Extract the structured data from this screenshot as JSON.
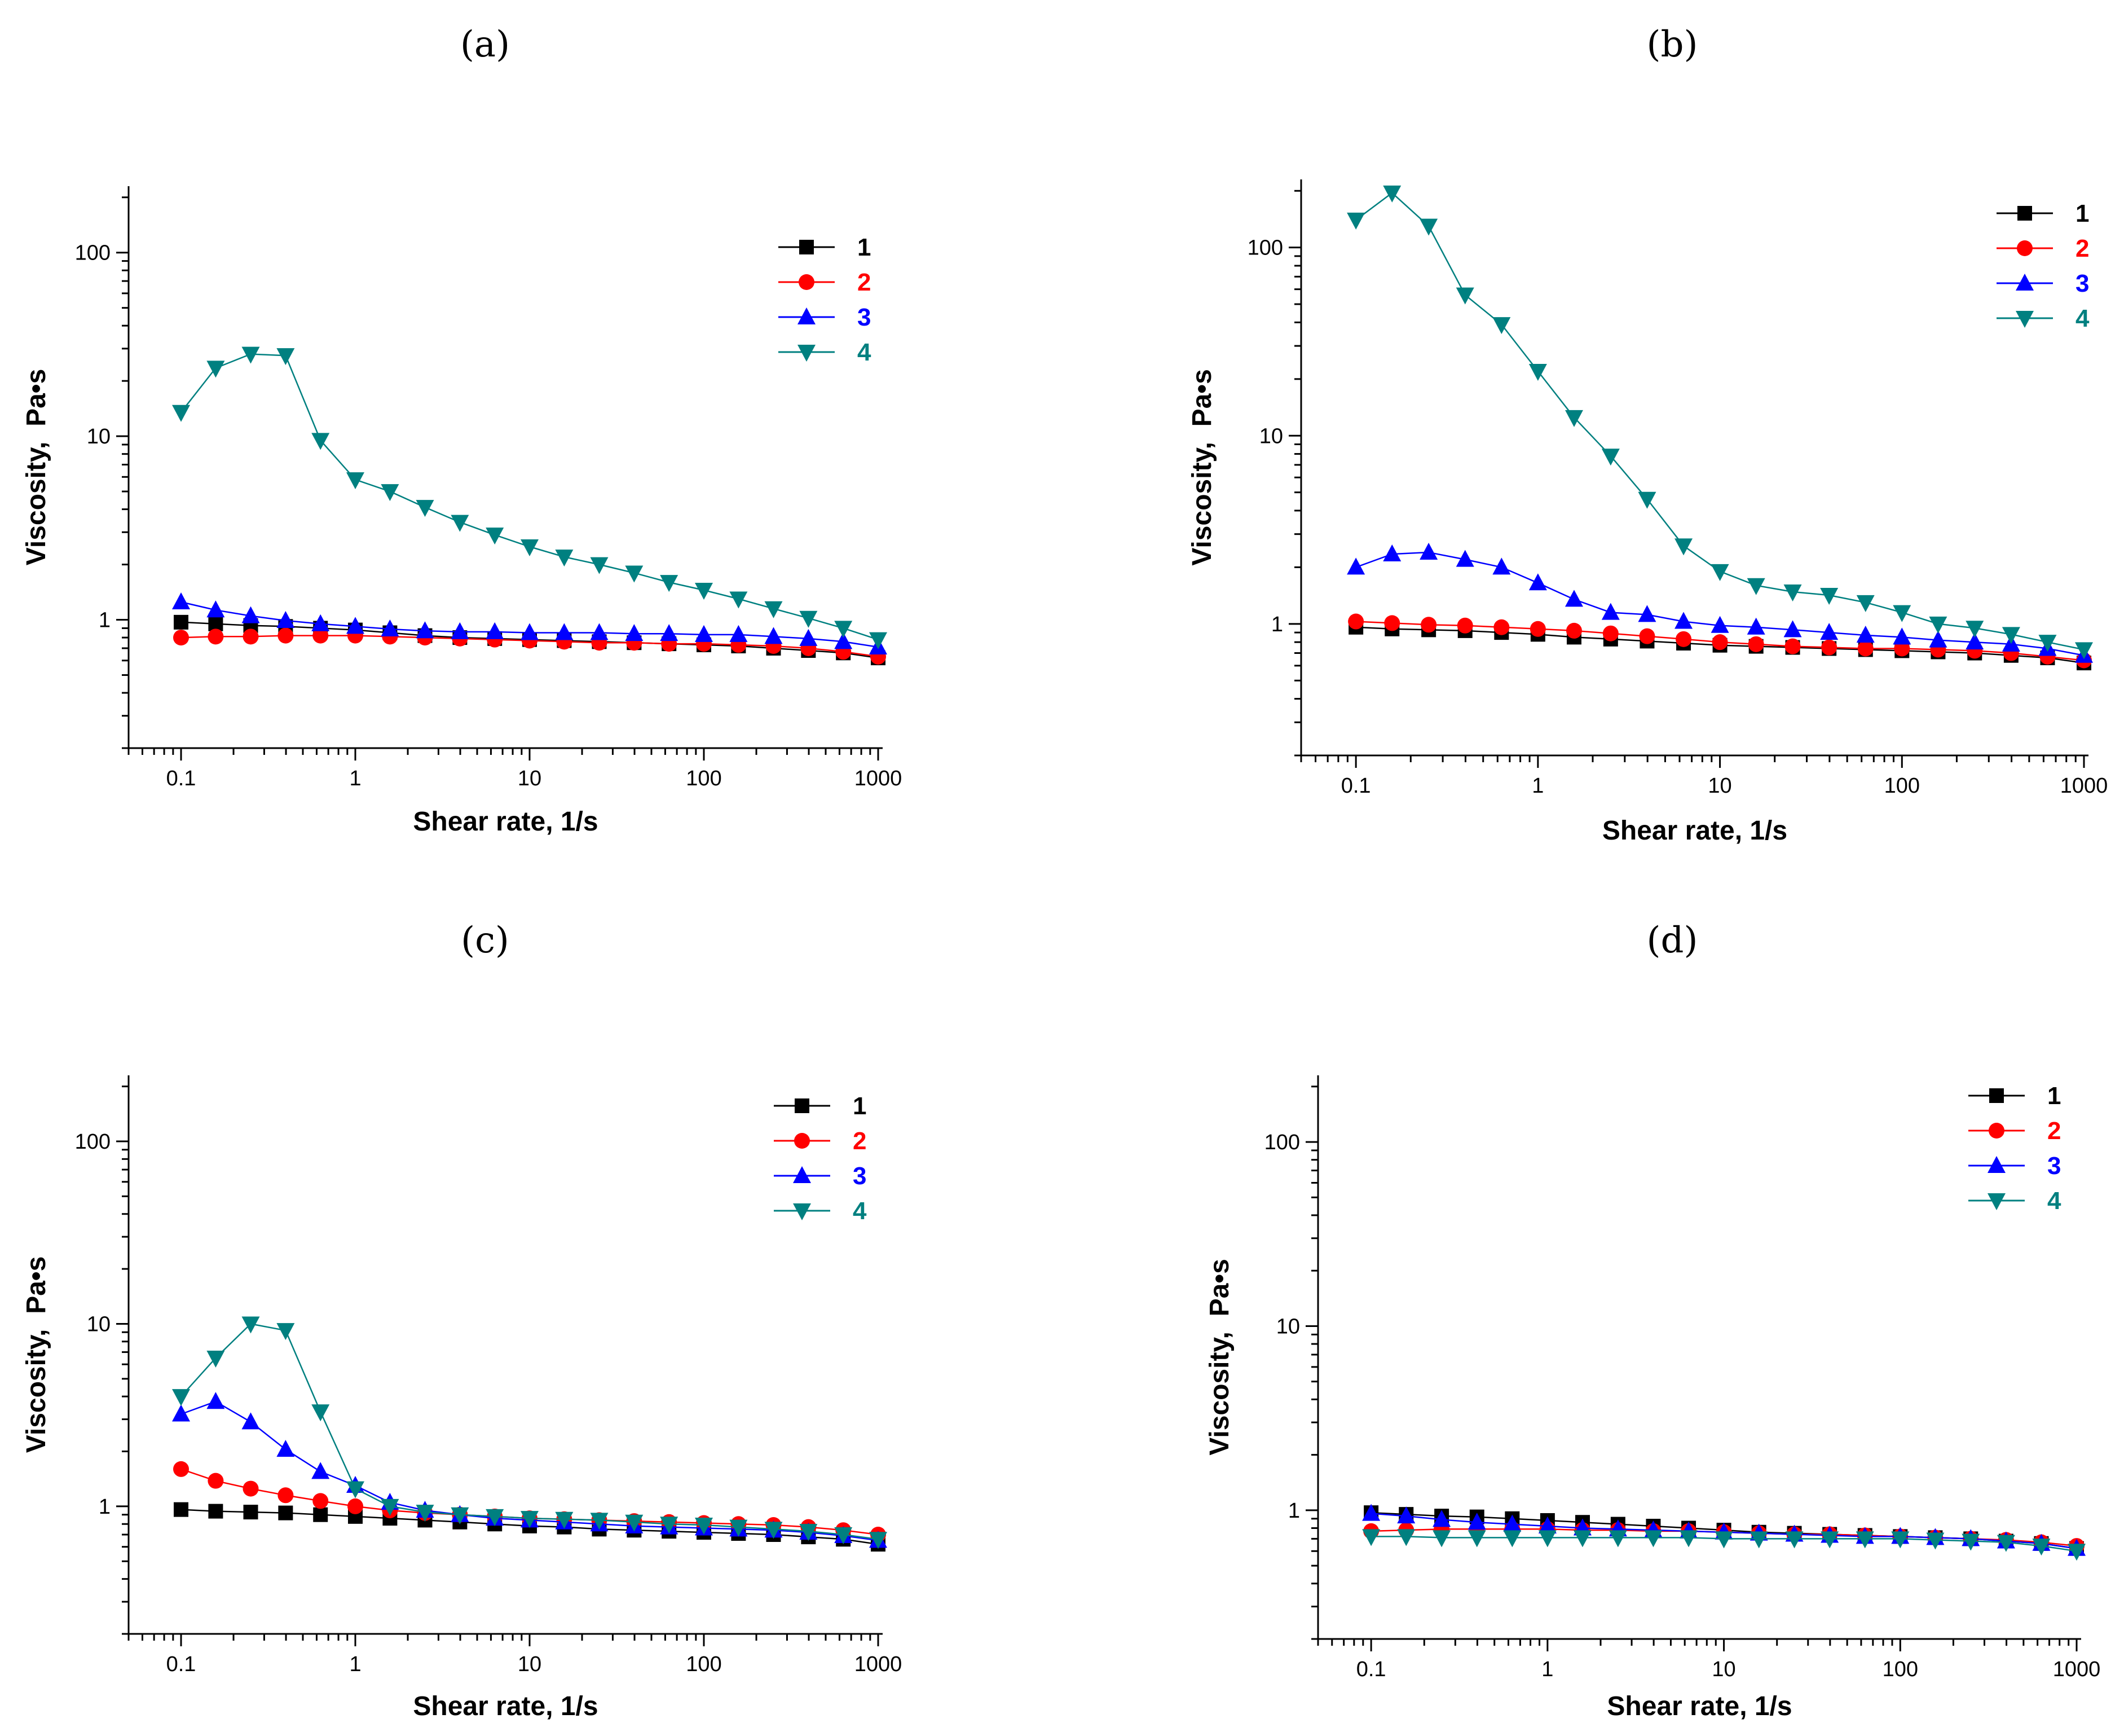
{
  "chart_data": [
    {
      "panel": "(a)",
      "type": "line",
      "xscale": "log",
      "yscale": "log",
      "xlim": [
        0.05,
        1000
      ],
      "ylim": [
        0.2,
        230
      ],
      "xlabel": "Shear rate, 1/s",
      "ylabel": "Viscosity,  Pa•s",
      "xticks": [
        "0.1",
        "1",
        "10",
        "100",
        "1000"
      ],
      "yticks": [
        "1",
        "10",
        "100"
      ],
      "legend": "top-right",
      "x": [
        0.1,
        0.158,
        0.251,
        0.398,
        0.631,
        1,
        1.58,
        2.51,
        3.98,
        6.31,
        10,
        15.8,
        25.1,
        39.8,
        63.1,
        100,
        158,
        251,
        398,
        631,
        1000
      ],
      "series": [
        {
          "name": "1",
          "color": "#000000",
          "marker": "square",
          "values": [
            0.97,
            0.95,
            0.93,
            0.92,
            0.9,
            0.88,
            0.85,
            0.82,
            0.8,
            0.79,
            0.78,
            0.77,
            0.76,
            0.75,
            0.74,
            0.73,
            0.72,
            0.7,
            0.68,
            0.66,
            0.62
          ]
        },
        {
          "name": "2",
          "color": "#ff0000",
          "marker": "circle",
          "values": [
            0.8,
            0.81,
            0.81,
            0.82,
            0.82,
            0.82,
            0.81,
            0.8,
            0.79,
            0.78,
            0.77,
            0.76,
            0.75,
            0.75,
            0.74,
            0.74,
            0.73,
            0.72,
            0.7,
            0.67,
            0.63
          ]
        },
        {
          "name": "3",
          "color": "#0000ff",
          "marker": "triangle-up",
          "values": [
            1.25,
            1.13,
            1.05,
            0.99,
            0.95,
            0.92,
            0.89,
            0.87,
            0.86,
            0.86,
            0.85,
            0.85,
            0.85,
            0.84,
            0.84,
            0.83,
            0.83,
            0.81,
            0.79,
            0.76,
            0.71
          ]
        },
        {
          "name": "4",
          "color": "#008080",
          "marker": "triangle-down",
          "values": [
            13.5,
            23.5,
            28,
            27.5,
            9.5,
            5.8,
            5.0,
            4.1,
            3.4,
            2.9,
            2.5,
            2.2,
            2.0,
            1.8,
            1.6,
            1.45,
            1.3,
            1.15,
            1.02,
            0.9,
            0.78
          ]
        }
      ]
    },
    {
      "panel": "(b)",
      "type": "line",
      "xscale": "log",
      "yscale": "log",
      "xlim": [
        0.05,
        1000
      ],
      "ylim": [
        0.2,
        230
      ],
      "xlabel": "Shear rate, 1/s",
      "ylabel": "Viscosity,  Pa•s",
      "xticks": [
        "0.1",
        "1",
        "10",
        "100",
        "1000"
      ],
      "yticks": [
        "1",
        "10",
        "100"
      ],
      "legend": "top-right",
      "x": [
        0.1,
        0.158,
        0.251,
        0.398,
        0.631,
        1,
        1.58,
        2.51,
        3.98,
        6.31,
        10,
        15.8,
        25.1,
        39.8,
        63.1,
        100,
        158,
        251,
        398,
        631,
        1000
      ],
      "series": [
        {
          "name": "1",
          "color": "#000000",
          "marker": "square",
          "values": [
            0.96,
            0.94,
            0.93,
            0.92,
            0.9,
            0.88,
            0.85,
            0.83,
            0.81,
            0.79,
            0.77,
            0.76,
            0.75,
            0.74,
            0.73,
            0.72,
            0.71,
            0.7,
            0.68,
            0.66,
            0.62
          ]
        },
        {
          "name": "2",
          "color": "#ff0000",
          "marker": "circle",
          "values": [
            1.03,
            1.01,
            0.99,
            0.98,
            0.96,
            0.94,
            0.92,
            0.89,
            0.86,
            0.83,
            0.8,
            0.78,
            0.76,
            0.75,
            0.74,
            0.74,
            0.73,
            0.72,
            0.7,
            0.67,
            0.64
          ]
        },
        {
          "name": "3",
          "color": "#0000ff",
          "marker": "triangle-up",
          "values": [
            2.0,
            2.35,
            2.4,
            2.2,
            2.0,
            1.65,
            1.35,
            1.15,
            1.12,
            1.03,
            0.98,
            0.96,
            0.93,
            0.9,
            0.87,
            0.85,
            0.82,
            0.8,
            0.78,
            0.74,
            0.68
          ]
        },
        {
          "name": "4",
          "color": "#008080",
          "marker": "triangle-down",
          "values": [
            140,
            195,
            130,
            56,
            39,
            22,
            12.5,
            7.8,
            4.6,
            2.6,
            1.9,
            1.6,
            1.48,
            1.42,
            1.3,
            1.15,
            1.0,
            0.95,
            0.88,
            0.8,
            0.73
          ]
        }
      ]
    },
    {
      "panel": "(c)",
      "type": "line",
      "xscale": "log",
      "yscale": "log",
      "xlim": [
        0.05,
        1000
      ],
      "ylim": [
        0.2,
        230
      ],
      "xlabel": "Shear rate, 1/s",
      "ylabel": "Viscosity,  Pa•s",
      "xticks": [
        "0.1",
        "1",
        "10",
        "100",
        "1000"
      ],
      "yticks": [
        "1",
        "10",
        "100"
      ],
      "legend": "top-right",
      "x": [
        0.1,
        0.158,
        0.251,
        0.398,
        0.631,
        1,
        1.58,
        2.51,
        3.98,
        6.31,
        10,
        15.8,
        25.1,
        39.8,
        63.1,
        100,
        158,
        251,
        398,
        631,
        1000
      ],
      "series": [
        {
          "name": "1",
          "color": "#000000",
          "marker": "square",
          "values": [
            0.96,
            0.94,
            0.93,
            0.92,
            0.9,
            0.88,
            0.86,
            0.84,
            0.82,
            0.8,
            0.78,
            0.77,
            0.75,
            0.74,
            0.73,
            0.72,
            0.71,
            0.7,
            0.68,
            0.66,
            0.62
          ]
        },
        {
          "name": "2",
          "color": "#ff0000",
          "marker": "circle",
          "values": [
            1.6,
            1.38,
            1.25,
            1.15,
            1.07,
            1.0,
            0.95,
            0.92,
            0.9,
            0.88,
            0.86,
            0.85,
            0.84,
            0.83,
            0.82,
            0.81,
            0.8,
            0.79,
            0.77,
            0.74,
            0.7
          ]
        },
        {
          "name": "3",
          "color": "#0000ff",
          "marker": "triangle-up",
          "values": [
            3.2,
            3.75,
            2.9,
            2.05,
            1.55,
            1.3,
            1.05,
            0.95,
            0.9,
            0.86,
            0.84,
            0.82,
            0.8,
            0.78,
            0.77,
            0.76,
            0.75,
            0.74,
            0.72,
            0.69,
            0.65
          ]
        },
        {
          "name": "4",
          "color": "#008080",
          "marker": "triangle-down",
          "values": [
            4.0,
            6.5,
            10.0,
            9.2,
            3.3,
            1.25,
            1.0,
            0.93,
            0.9,
            0.88,
            0.86,
            0.85,
            0.84,
            0.82,
            0.8,
            0.79,
            0.77,
            0.75,
            0.73,
            0.7,
            0.66
          ]
        }
      ]
    },
    {
      "panel": "(d)",
      "type": "line",
      "xscale": "log",
      "yscale": "log",
      "xlim": [
        0.05,
        1000
      ],
      "ylim": [
        0.2,
        230
      ],
      "xlabel": "Shear rate, 1/s",
      "ylabel": "Viscosity,  Pa•s",
      "xticks": [
        "0.1",
        "1",
        "10",
        "100",
        "1000"
      ],
      "yticks": [
        "1",
        "10",
        "100"
      ],
      "legend": "top-right",
      "x": [
        0.1,
        0.158,
        0.251,
        0.398,
        0.631,
        1,
        1.58,
        2.51,
        3.98,
        6.31,
        10,
        15.8,
        25.1,
        39.8,
        63.1,
        100,
        158,
        251,
        398,
        631,
        1000
      ],
      "series": [
        {
          "name": "1",
          "color": "#000000",
          "marker": "square",
          "values": [
            0.97,
            0.95,
            0.93,
            0.92,
            0.9,
            0.88,
            0.86,
            0.84,
            0.82,
            0.8,
            0.78,
            0.76,
            0.75,
            0.74,
            0.73,
            0.72,
            0.71,
            0.7,
            0.68,
            0.66,
            0.62
          ]
        },
        {
          "name": "2",
          "color": "#ff0000",
          "marker": "circle",
          "values": [
            0.77,
            0.78,
            0.79,
            0.79,
            0.79,
            0.79,
            0.78,
            0.78,
            0.77,
            0.77,
            0.76,
            0.75,
            0.74,
            0.74,
            0.73,
            0.72,
            0.71,
            0.7,
            0.69,
            0.67,
            0.64
          ]
        },
        {
          "name": "3",
          "color": "#0000ff",
          "marker": "triangle-up",
          "values": [
            0.96,
            0.93,
            0.89,
            0.86,
            0.84,
            0.82,
            0.8,
            0.79,
            0.78,
            0.77,
            0.76,
            0.75,
            0.74,
            0.73,
            0.72,
            0.72,
            0.71,
            0.7,
            0.68,
            0.66,
            0.62
          ]
        },
        {
          "name": "4",
          "color": "#008080",
          "marker": "triangle-down",
          "values": [
            0.72,
            0.72,
            0.71,
            0.71,
            0.71,
            0.71,
            0.71,
            0.71,
            0.71,
            0.71,
            0.7,
            0.7,
            0.7,
            0.7,
            0.7,
            0.7,
            0.69,
            0.68,
            0.67,
            0.64,
            0.6
          ]
        }
      ]
    }
  ]
}
